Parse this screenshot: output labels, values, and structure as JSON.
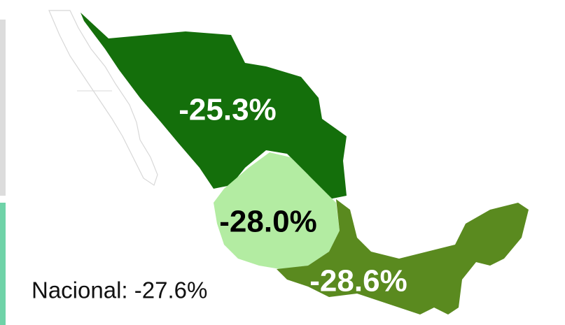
{
  "map": {
    "regions": [
      {
        "label": "-25.3%",
        "color": "#146f0b",
        "text_color": "#ffffff"
      },
      {
        "label": "-28.0%",
        "color": "#b3eca2",
        "text_color": "#000000"
      },
      {
        "label": "-28.6%",
        "color": "#5a8a1f",
        "text_color": "#ffffff"
      }
    ],
    "national": "Nacional: -27.6%"
  }
}
